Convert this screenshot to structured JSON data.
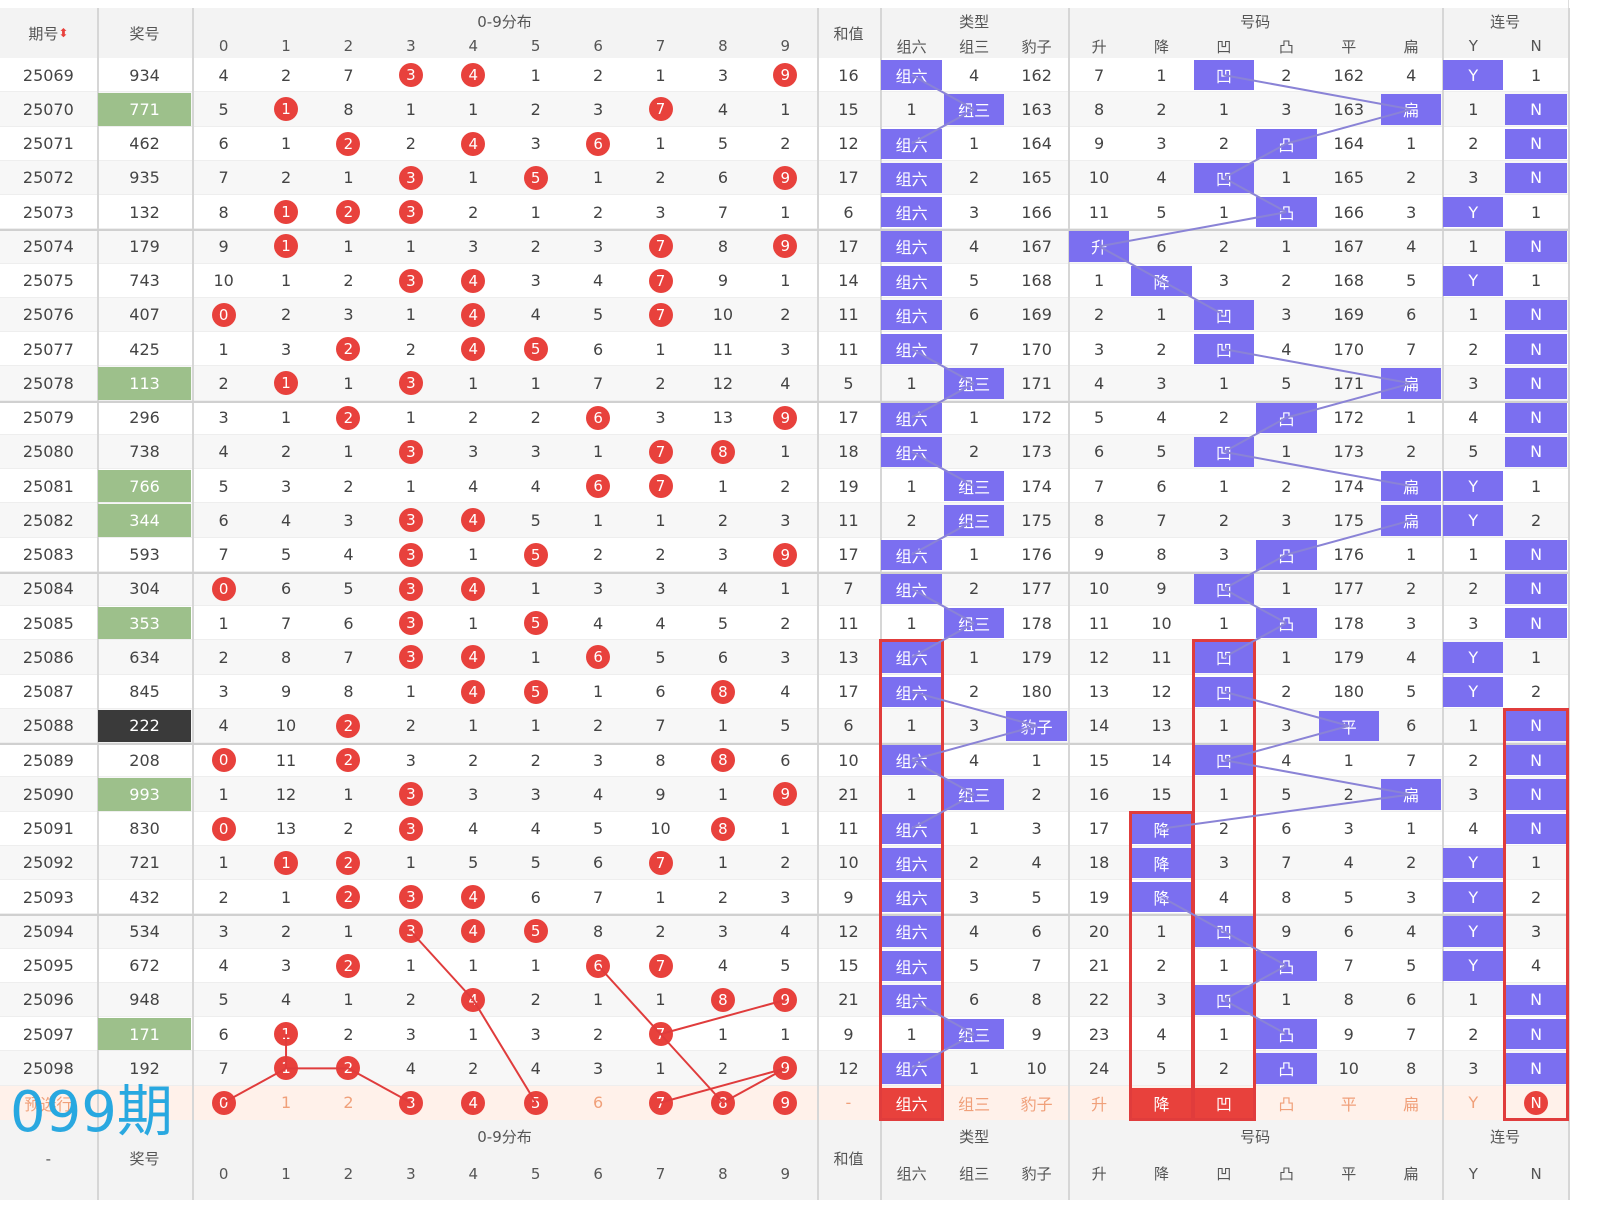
{
  "header": {
    "issue_col": "期号",
    "prize_col": "奖号",
    "dist_group": "0-9分布",
    "sum_col": "和值",
    "type_group": "类型",
    "code_group": "号码",
    "consec_group": "连号",
    "digits": [
      "0",
      "1",
      "2",
      "3",
      "4",
      "5",
      "6",
      "7",
      "8",
      "9"
    ],
    "type_cols": [
      "组六",
      "组三",
      "豹子"
    ],
    "code_cols": [
      "升",
      "降",
      "凹",
      "凸",
      "平",
      "扁"
    ],
    "consec_cols": [
      "Y",
      "N"
    ],
    "sort_icon": "sort-arrows-icon"
  },
  "rows": [
    {
      "issue": "25069",
      "prize": "934",
      "prize_style": "",
      "dist": [
        "4",
        "2",
        "7",
        "b",
        "b",
        "1",
        "2",
        "1",
        "3",
        "b"
      ],
      "sum": "16",
      "type": [
        "组六",
        "4",
        "162"
      ],
      "code": [
        "7",
        "1",
        "凹",
        "2",
        "162",
        "4"
      ],
      "consec": [
        "Y",
        "1"
      ],
      "type_hl": 0,
      "code_hl": 2,
      "consec_hl": 0
    },
    {
      "issue": "25070",
      "prize": "771",
      "prize_style": "green",
      "dist": [
        "5",
        "b",
        "8",
        "1",
        "1",
        "2",
        "3",
        "b",
        "4",
        "1"
      ],
      "sum": "15",
      "type": [
        "1",
        "组三",
        "163"
      ],
      "code": [
        "8",
        "2",
        "1",
        "3",
        "163",
        "扁"
      ],
      "consec": [
        "1",
        "N"
      ],
      "type_hl": 1,
      "code_hl": 5,
      "consec_hl": 1
    },
    {
      "issue": "25071",
      "prize": "462",
      "prize_style": "",
      "dist": [
        "6",
        "1",
        "b",
        "2",
        "b",
        "3",
        "b",
        "1",
        "5",
        "2"
      ],
      "sum": "12",
      "type": [
        "组六",
        "1",
        "164"
      ],
      "code": [
        "9",
        "3",
        "2",
        "凸",
        "164",
        "1"
      ],
      "consec": [
        "2",
        "N"
      ],
      "type_hl": 0,
      "code_hl": 3,
      "consec_hl": 1
    },
    {
      "issue": "25072",
      "prize": "935",
      "prize_style": "",
      "dist": [
        "7",
        "2",
        "1",
        "b",
        "1",
        "b",
        "1",
        "2",
        "6",
        "b"
      ],
      "sum": "17",
      "type": [
        "组六",
        "2",
        "165"
      ],
      "code": [
        "10",
        "4",
        "凹",
        "1",
        "165",
        "2"
      ],
      "consec": [
        "3",
        "N"
      ],
      "type_hl": 0,
      "code_hl": 2,
      "consec_hl": 1
    },
    {
      "issue": "25073",
      "prize": "132",
      "prize_style": "",
      "dist": [
        "8",
        "b",
        "b",
        "b",
        "2",
        "1",
        "2",
        "3",
        "7",
        "1"
      ],
      "sum": "6",
      "type": [
        "组六",
        "3",
        "166"
      ],
      "code": [
        "11",
        "5",
        "1",
        "凸",
        "166",
        "3"
      ],
      "consec": [
        "Y",
        "1"
      ],
      "type_hl": 0,
      "code_hl": 3,
      "consec_hl": 0
    },
    {
      "issue": "25074",
      "prize": "179",
      "prize_style": "",
      "dist": [
        "9",
        "b",
        "1",
        "1",
        "3",
        "2",
        "3",
        "b",
        "8",
        "b"
      ],
      "sum": "17",
      "type": [
        "组六",
        "4",
        "167"
      ],
      "code": [
        "升",
        "6",
        "2",
        "1",
        "167",
        "4"
      ],
      "consec": [
        "1",
        "N"
      ],
      "type_hl": 0,
      "code_hl": 0,
      "consec_hl": 1
    },
    {
      "issue": "25075",
      "prize": "743",
      "prize_style": "",
      "dist": [
        "10",
        "1",
        "2",
        "b",
        "b",
        "3",
        "4",
        "b",
        "9",
        "1"
      ],
      "sum": "14",
      "type": [
        "组六",
        "5",
        "168"
      ],
      "code": [
        "1",
        "降",
        "3",
        "2",
        "168",
        "5"
      ],
      "consec": [
        "Y",
        "1"
      ],
      "type_hl": 0,
      "code_hl": 1,
      "consec_hl": 0
    },
    {
      "issue": "25076",
      "prize": "407",
      "prize_style": "",
      "dist": [
        "b",
        "2",
        "3",
        "1",
        "b",
        "4",
        "5",
        "b",
        "10",
        "2"
      ],
      "sum": "11",
      "type": [
        "组六",
        "6",
        "169"
      ],
      "code": [
        "2",
        "1",
        "凹",
        "3",
        "169",
        "6"
      ],
      "consec": [
        "1",
        "N"
      ],
      "type_hl": 0,
      "code_hl": 2,
      "consec_hl": 1
    },
    {
      "issue": "25077",
      "prize": "425",
      "prize_style": "",
      "dist": [
        "1",
        "3",
        "b",
        "2",
        "b",
        "b",
        "6",
        "1",
        "11",
        "3"
      ],
      "sum": "11",
      "type": [
        "组六",
        "7",
        "170"
      ],
      "code": [
        "3",
        "2",
        "凹",
        "4",
        "170",
        "7"
      ],
      "consec": [
        "2",
        "N"
      ],
      "type_hl": 0,
      "code_hl": 2,
      "consec_hl": 1
    },
    {
      "issue": "25078",
      "prize": "113",
      "prize_style": "green",
      "dist": [
        "2",
        "b",
        "1",
        "b",
        "1",
        "1",
        "7",
        "2",
        "12",
        "4"
      ],
      "sum": "5",
      "type": [
        "1",
        "组三",
        "171"
      ],
      "code": [
        "4",
        "3",
        "1",
        "5",
        "171",
        "扁"
      ],
      "consec": [
        "3",
        "N"
      ],
      "type_hl": 1,
      "code_hl": 5,
      "consec_hl": 1
    },
    {
      "issue": "25079",
      "prize": "296",
      "prize_style": "",
      "dist": [
        "3",
        "1",
        "b",
        "1",
        "2",
        "2",
        "b",
        "3",
        "13",
        "b"
      ],
      "sum": "17",
      "type": [
        "组六",
        "1",
        "172"
      ],
      "code": [
        "5",
        "4",
        "2",
        "凸",
        "172",
        "1"
      ],
      "consec": [
        "4",
        "N"
      ],
      "type_hl": 0,
      "code_hl": 3,
      "consec_hl": 1
    },
    {
      "issue": "25080",
      "prize": "738",
      "prize_style": "",
      "dist": [
        "4",
        "2",
        "1",
        "b",
        "3",
        "3",
        "1",
        "b",
        "b",
        "1"
      ],
      "sum": "18",
      "type": [
        "组六",
        "2",
        "173"
      ],
      "code": [
        "6",
        "5",
        "凹",
        "1",
        "173",
        "2"
      ],
      "consec": [
        "5",
        "N"
      ],
      "type_hl": 0,
      "code_hl": 2,
      "consec_hl": 1
    },
    {
      "issue": "25081",
      "prize": "766",
      "prize_style": "green",
      "dist": [
        "5",
        "3",
        "2",
        "1",
        "4",
        "4",
        "b",
        "b",
        "1",
        "2"
      ],
      "sum": "19",
      "type": [
        "1",
        "组三",
        "174"
      ],
      "code": [
        "7",
        "6",
        "1",
        "2",
        "174",
        "扁"
      ],
      "consec": [
        "Y",
        "1"
      ],
      "type_hl": 1,
      "code_hl": 5,
      "consec_hl": 0
    },
    {
      "issue": "25082",
      "prize": "344",
      "prize_style": "green",
      "dist": [
        "6",
        "4",
        "3",
        "b",
        "b",
        "5",
        "1",
        "1",
        "2",
        "3"
      ],
      "sum": "11",
      "type": [
        "2",
        "组三",
        "175"
      ],
      "code": [
        "8",
        "7",
        "2",
        "3",
        "175",
        "扁"
      ],
      "consec": [
        "Y",
        "2"
      ],
      "type_hl": 1,
      "code_hl": 5,
      "consec_hl": 0
    },
    {
      "issue": "25083",
      "prize": "593",
      "prize_style": "",
      "dist": [
        "7",
        "5",
        "4",
        "b",
        "1",
        "b",
        "2",
        "2",
        "3",
        "b"
      ],
      "sum": "17",
      "type": [
        "组六",
        "1",
        "176"
      ],
      "code": [
        "9",
        "8",
        "3",
        "凸",
        "176",
        "1"
      ],
      "consec": [
        "1",
        "N"
      ],
      "type_hl": 0,
      "code_hl": 3,
      "consec_hl": 1
    },
    {
      "issue": "25084",
      "prize": "304",
      "prize_style": "",
      "dist": [
        "b",
        "6",
        "5",
        "b",
        "b",
        "1",
        "3",
        "3",
        "4",
        "1"
      ],
      "sum": "7",
      "type": [
        "组六",
        "2",
        "177"
      ],
      "code": [
        "10",
        "9",
        "凹",
        "1",
        "177",
        "2"
      ],
      "consec": [
        "2",
        "N"
      ],
      "type_hl": 0,
      "code_hl": 2,
      "consec_hl": 1
    },
    {
      "issue": "25085",
      "prize": "353",
      "prize_style": "green",
      "dist": [
        "1",
        "7",
        "6",
        "b",
        "1",
        "b",
        "4",
        "4",
        "5",
        "2"
      ],
      "sum": "11",
      "type": [
        "1",
        "组三",
        "178"
      ],
      "code": [
        "11",
        "10",
        "1",
        "凸",
        "178",
        "3"
      ],
      "consec": [
        "3",
        "N"
      ],
      "type_hl": 1,
      "code_hl": 3,
      "consec_hl": 1
    },
    {
      "issue": "25086",
      "prize": "634",
      "prize_style": "",
      "dist": [
        "2",
        "8",
        "7",
        "b",
        "b",
        "1",
        "b",
        "5",
        "6",
        "3"
      ],
      "sum": "13",
      "type": [
        "组六",
        "1",
        "179"
      ],
      "code": [
        "12",
        "11",
        "凹",
        "1",
        "179",
        "4"
      ],
      "consec": [
        "Y",
        "1"
      ],
      "type_hl": 0,
      "code_hl": 2,
      "consec_hl": 0
    },
    {
      "issue": "25087",
      "prize": "845",
      "prize_style": "",
      "dist": [
        "3",
        "9",
        "8",
        "1",
        "b",
        "b",
        "1",
        "6",
        "b",
        "4"
      ],
      "sum": "17",
      "type": [
        "组六",
        "2",
        "180"
      ],
      "code": [
        "13",
        "12",
        "凹",
        "2",
        "180",
        "5"
      ],
      "consec": [
        "Y",
        "2"
      ],
      "type_hl": 0,
      "code_hl": 2,
      "consec_hl": 0
    },
    {
      "issue": "25088",
      "prize": "222",
      "prize_style": "dark",
      "dist": [
        "4",
        "10",
        "b",
        "2",
        "1",
        "1",
        "2",
        "7",
        "1",
        "5"
      ],
      "sum": "6",
      "type": [
        "1",
        "3",
        "豹子"
      ],
      "code": [
        "14",
        "13",
        "1",
        "3",
        "平",
        "6"
      ],
      "consec": [
        "1",
        "N"
      ],
      "type_hl": 2,
      "code_hl": 4,
      "consec_hl": 1
    },
    {
      "issue": "25089",
      "prize": "208",
      "prize_style": "",
      "dist": [
        "b",
        "11",
        "b",
        "3",
        "2",
        "2",
        "3",
        "8",
        "b",
        "6"
      ],
      "sum": "10",
      "type": [
        "组六",
        "4",
        "1"
      ],
      "code": [
        "15",
        "14",
        "凹",
        "4",
        "1",
        "7"
      ],
      "consec": [
        "2",
        "N"
      ],
      "type_hl": 0,
      "code_hl": 2,
      "consec_hl": 1
    },
    {
      "issue": "25090",
      "prize": "993",
      "prize_style": "green",
      "dist": [
        "1",
        "12",
        "1",
        "b",
        "3",
        "3",
        "4",
        "9",
        "1",
        "b"
      ],
      "sum": "21",
      "type": [
        "1",
        "组三",
        "2"
      ],
      "code": [
        "16",
        "15",
        "1",
        "5",
        "2",
        "扁"
      ],
      "consec": [
        "3",
        "N"
      ],
      "type_hl": 1,
      "code_hl": 5,
      "consec_hl": 1
    },
    {
      "issue": "25091",
      "prize": "830",
      "prize_style": "",
      "dist": [
        "b",
        "13",
        "2",
        "b",
        "4",
        "4",
        "5",
        "10",
        "b",
        "1"
      ],
      "sum": "11",
      "type": [
        "组六",
        "1",
        "3"
      ],
      "code": [
        "17",
        "降",
        "2",
        "6",
        "3",
        "1"
      ],
      "consec": [
        "4",
        "N"
      ],
      "type_hl": 0,
      "code_hl": 1,
      "consec_hl": 1
    },
    {
      "issue": "25092",
      "prize": "721",
      "prize_style": "",
      "dist": [
        "1",
        "b",
        "b",
        "1",
        "5",
        "5",
        "6",
        "b",
        "1",
        "2"
      ],
      "sum": "10",
      "type": [
        "组六",
        "2",
        "4"
      ],
      "code": [
        "18",
        "降",
        "3",
        "7",
        "4",
        "2"
      ],
      "consec": [
        "Y",
        "1"
      ],
      "type_hl": 0,
      "code_hl": 1,
      "consec_hl": 0
    },
    {
      "issue": "25093",
      "prize": "432",
      "prize_style": "",
      "dist": [
        "2",
        "1",
        "b",
        "b",
        "b",
        "6",
        "7",
        "1",
        "2",
        "3"
      ],
      "sum": "9",
      "type": [
        "组六",
        "3",
        "5"
      ],
      "code": [
        "19",
        "降",
        "4",
        "8",
        "5",
        "3"
      ],
      "consec": [
        "Y",
        "2"
      ],
      "type_hl": 0,
      "code_hl": 1,
      "consec_hl": 0
    },
    {
      "issue": "25094",
      "prize": "534",
      "prize_style": "",
      "dist": [
        "3",
        "2",
        "1",
        "b",
        "b",
        "b",
        "8",
        "2",
        "3",
        "4"
      ],
      "sum": "12",
      "type": [
        "组六",
        "4",
        "6"
      ],
      "code": [
        "20",
        "1",
        "凹",
        "9",
        "6",
        "4"
      ],
      "consec": [
        "Y",
        "3"
      ],
      "type_hl": 0,
      "code_hl": 2,
      "consec_hl": 0
    },
    {
      "issue": "25095",
      "prize": "672",
      "prize_style": "",
      "dist": [
        "4",
        "3",
        "b",
        "1",
        "1",
        "1",
        "b",
        "b",
        "4",
        "5"
      ],
      "sum": "15",
      "type": [
        "组六",
        "5",
        "7"
      ],
      "code": [
        "21",
        "2",
        "1",
        "凸",
        "7",
        "5"
      ],
      "consec": [
        "Y",
        "4"
      ],
      "type_hl": 0,
      "code_hl": 3,
      "consec_hl": 0
    },
    {
      "issue": "25096",
      "prize": "948",
      "prize_style": "",
      "dist": [
        "5",
        "4",
        "1",
        "2",
        "b",
        "2",
        "1",
        "1",
        "b",
        "b"
      ],
      "sum": "21",
      "type": [
        "组六",
        "6",
        "8"
      ],
      "code": [
        "22",
        "3",
        "凹",
        "1",
        "8",
        "6"
      ],
      "consec": [
        "1",
        "N"
      ],
      "type_hl": 0,
      "code_hl": 2,
      "consec_hl": 1
    },
    {
      "issue": "25097",
      "prize": "171",
      "prize_style": "green",
      "dist": [
        "6",
        "b",
        "2",
        "3",
        "1",
        "3",
        "2",
        "b",
        "1",
        "1"
      ],
      "sum": "9",
      "type": [
        "1",
        "组三",
        "9"
      ],
      "code": [
        "23",
        "4",
        "1",
        "凸",
        "9",
        "7"
      ],
      "consec": [
        "2",
        "N"
      ],
      "type_hl": 1,
      "code_hl": 3,
      "consec_hl": 1
    },
    {
      "issue": "25098",
      "prize": "192",
      "prize_style": "",
      "dist": [
        "7",
        "b",
        "b",
        "4",
        "2",
        "4",
        "3",
        "1",
        "2",
        "b"
      ],
      "sum": "12",
      "type": [
        "组六",
        "1",
        "10"
      ],
      "code": [
        "24",
        "5",
        "2",
        "凸",
        "10",
        "8"
      ],
      "consec": [
        "3",
        "N"
      ],
      "type_hl": 0,
      "code_hl": 3,
      "consec_hl": 1
    }
  ],
  "predict": {
    "label": "预选行",
    "dist": [
      "0",
      "1",
      "2",
      "3",
      "4",
      "5",
      "6",
      "7",
      "8",
      "9"
    ],
    "dist_balls": [
      true,
      false,
      false,
      true,
      true,
      true,
      false,
      true,
      true,
      true
    ],
    "sum": "-",
    "type": [
      "组六",
      "组三",
      "豹子"
    ],
    "type_hl": [
      true,
      false,
      false
    ],
    "code": [
      "升",
      "降",
      "凹",
      "凸",
      "平",
      "扁"
    ],
    "code_hl": [
      false,
      true,
      true,
      false,
      false,
      false
    ],
    "consec": [
      "Y",
      "N"
    ],
    "consec_ball": [
      false,
      true
    ]
  },
  "footer": {
    "issue": "-",
    "prize_col": "奖号",
    "dist_group": "0-9分布",
    "sum_col": "和值",
    "type_group": "类型",
    "code_group": "号码",
    "consec_group": "连号"
  },
  "overlay_label": "099期",
  "colors": {
    "ball": "#e8413c",
    "highlight": "#7b6ff0",
    "green": "#9dc08b",
    "dark": "#3a3a3a",
    "redbox": "#e03c3c",
    "label": "#29a8e0"
  }
}
